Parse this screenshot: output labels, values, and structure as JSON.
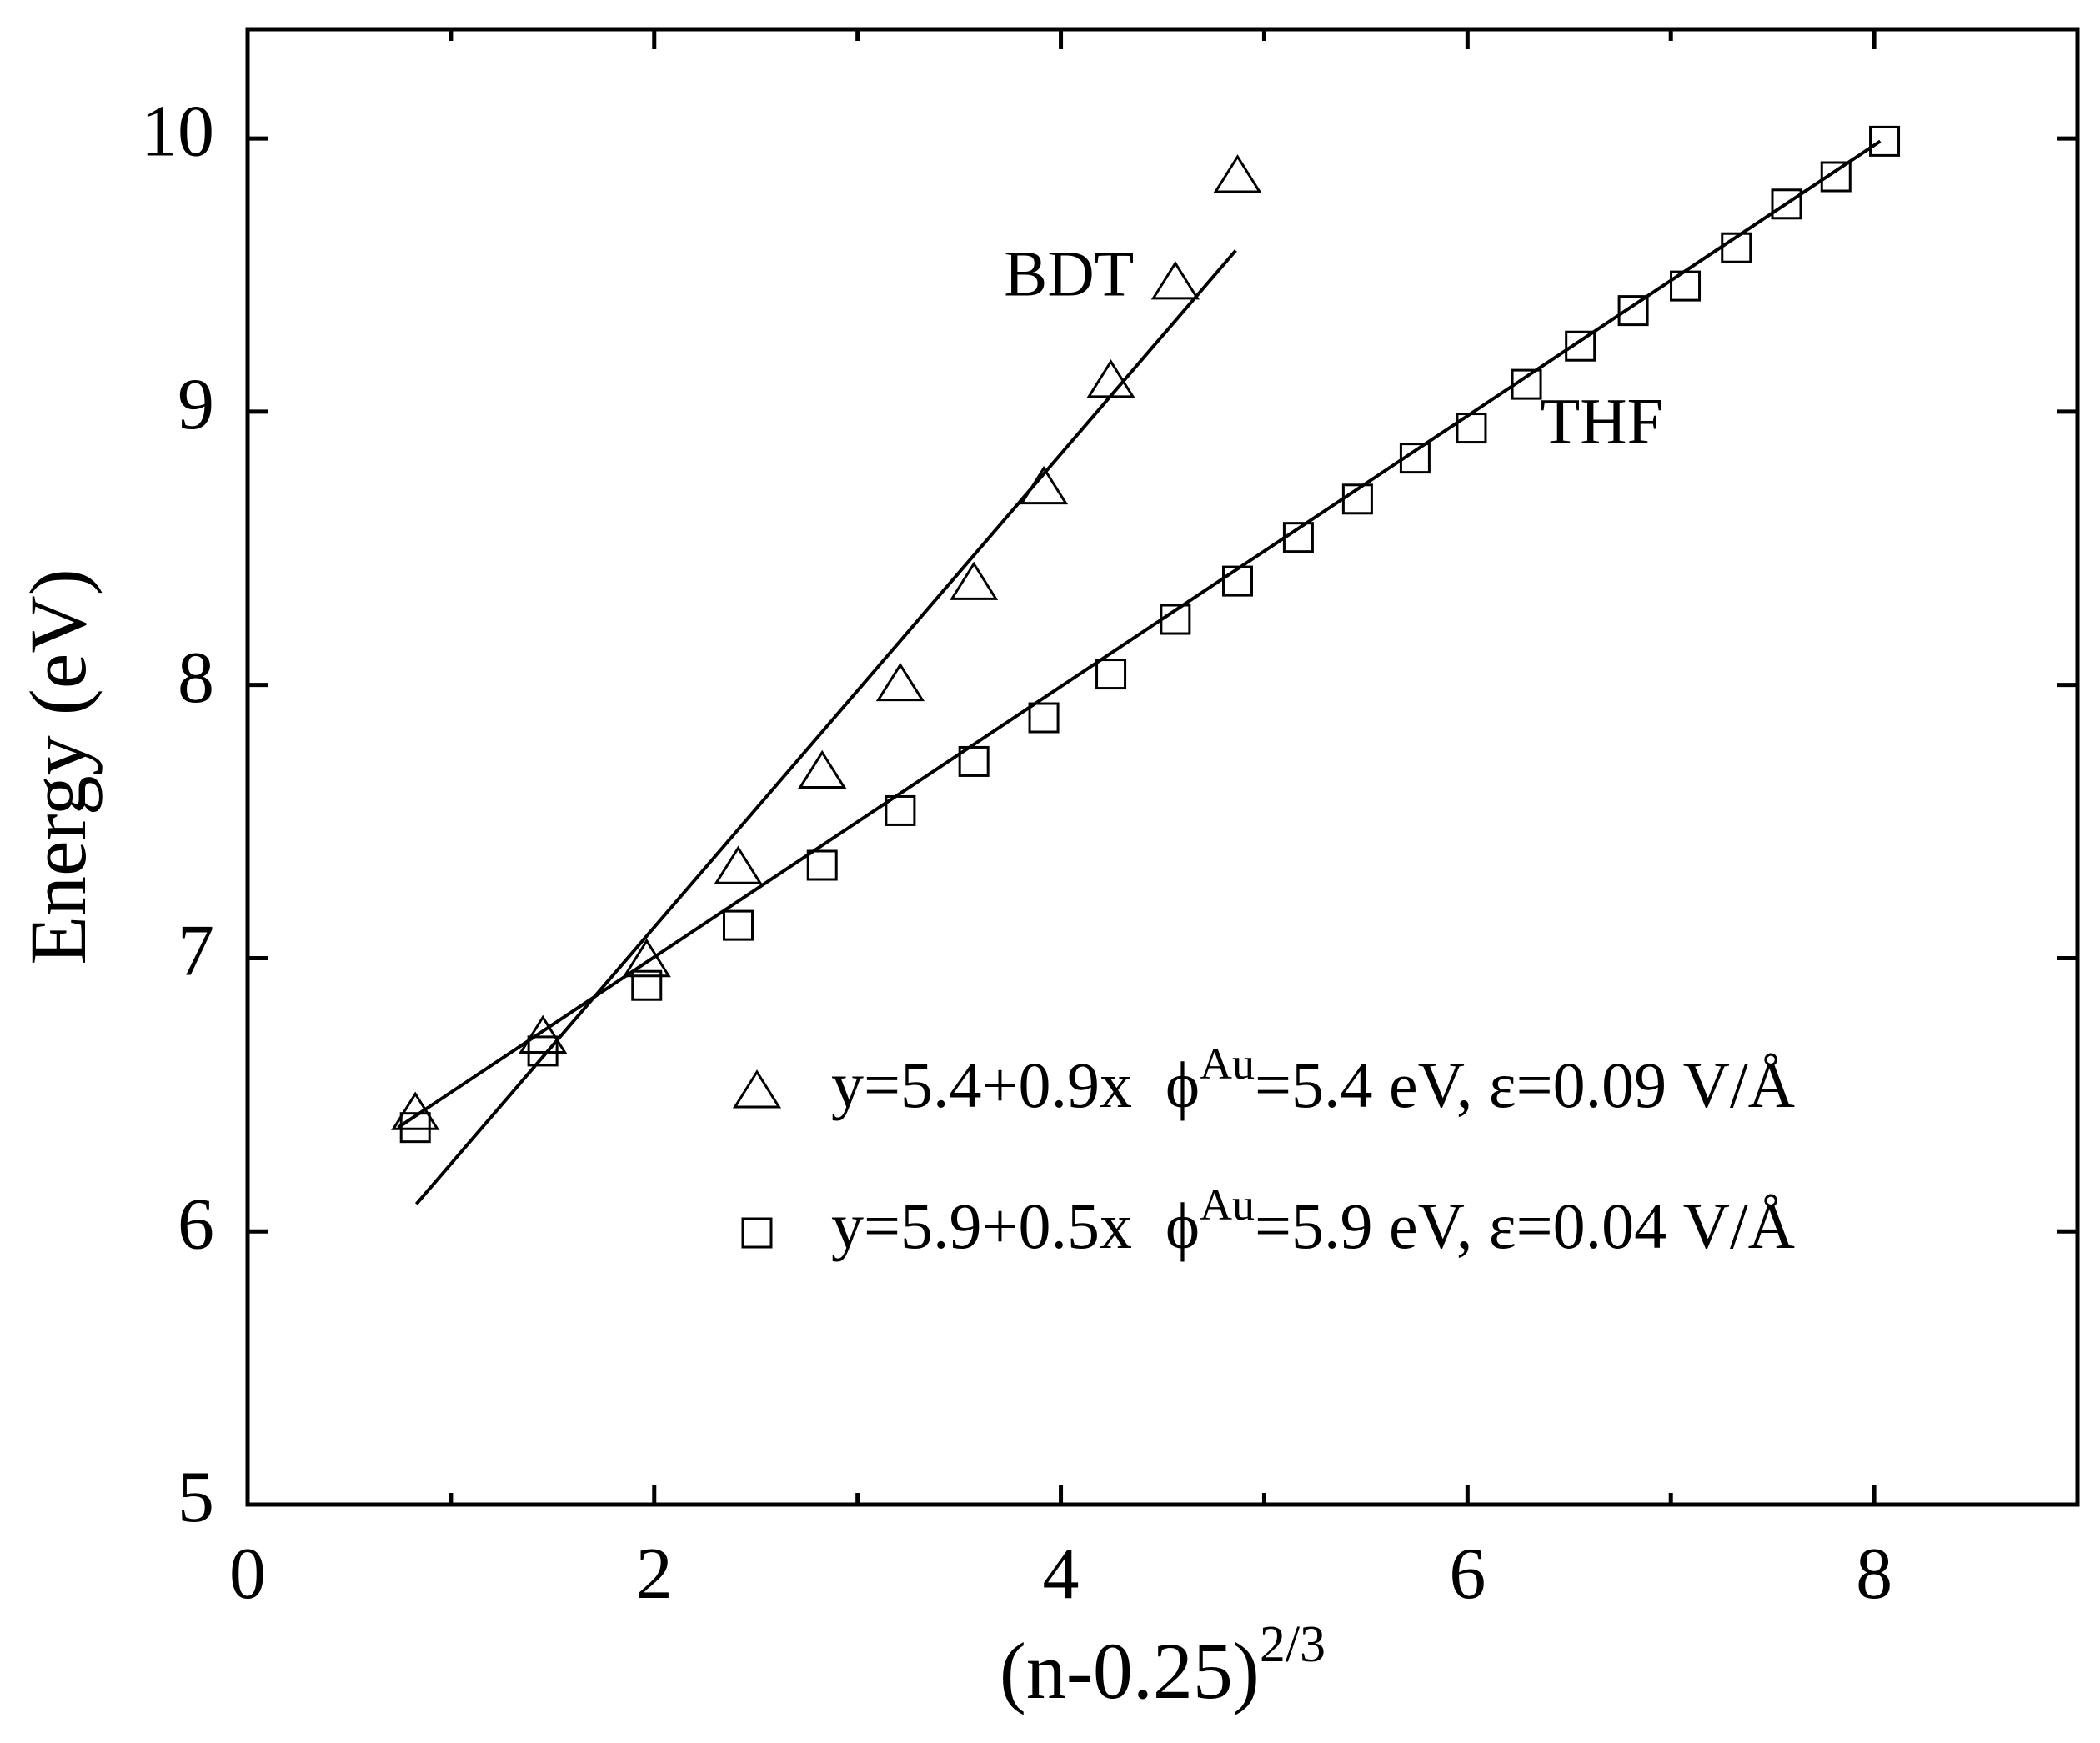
{
  "chart_data": {
    "type": "scatter",
    "x_label": "(n-0.25)",
    "x_label_sup": "2/3",
    "y_label": "Energy (eV)",
    "xlim": [
      0,
      9
    ],
    "xticks": [
      0,
      2,
      4,
      6,
      8
    ],
    "xminor": [
      1,
      3,
      5,
      7
    ],
    "ylim": [
      5,
      10.4
    ],
    "yticks": [
      5,
      6,
      7,
      8,
      9,
      10
    ],
    "annotations": [
      {
        "text": "BDT",
        "x": 4.04,
        "y": 9.48
      },
      {
        "text": "THF",
        "x": 6.66,
        "y": 8.94
      }
    ],
    "series": [
      {
        "name": "y=5.4+0.9x",
        "legend_parts": [
          "ϕ",
          "Au",
          "=5.4 eV, ε=0.09 V/Å"
        ],
        "marker": "triangle",
        "color": "#000000",
        "x": [
          0.825,
          1.452,
          1.963,
          2.413,
          2.826,
          3.21,
          3.572,
          3.916,
          4.246,
          4.563,
          4.869
        ],
        "y": [
          6.43,
          6.71,
          6.99,
          7.33,
          7.68,
          8.0,
          8.37,
          8.72,
          9.11,
          9.47,
          9.86
        ],
        "fit": {
          "x": [
            0.83,
            4.86
          ],
          "y": [
            6.1,
            9.59
          ]
        }
      },
      {
        "name": "y=5.9+0.5x",
        "legend_parts": [
          "ϕ",
          "Au",
          "=5.9 eV, ε=0.04 V/Å"
        ],
        "marker": "square",
        "color": "#000000",
        "x": [
          0.825,
          1.452,
          1.963,
          2.413,
          2.826,
          3.21,
          3.572,
          3.916,
          4.246,
          4.563,
          4.869,
          5.168,
          5.459,
          5.742,
          6.019,
          6.29,
          6.555,
          6.815,
          7.071,
          7.322,
          7.569,
          7.812,
          8.051
        ],
        "y": [
          6.38,
          6.66,
          6.9,
          7.12,
          7.34,
          7.54,
          7.72,
          7.88,
          8.04,
          8.24,
          8.38,
          8.54,
          8.68,
          8.83,
          8.94,
          9.1,
          9.24,
          9.37,
          9.46,
          9.6,
          9.76,
          9.86,
          9.99
        ],
        "fit": {
          "x": [
            0.74,
            8.03
          ],
          "y": [
            6.38,
            9.99
          ]
        }
      }
    ]
  }
}
